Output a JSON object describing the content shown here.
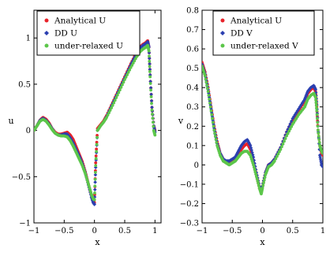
{
  "chart_data": [
    {
      "type": "scatter",
      "xlabel": "x",
      "ylabel": "u",
      "xlim": [
        -1,
        1.1
      ],
      "ylim": [
        -1,
        1.3
      ],
      "xticks": [
        "−1",
        "−0.5",
        "0",
        "0.5",
        "1"
      ],
      "yticks": [
        "−1",
        "−0.5",
        "0",
        "0.5",
        "1"
      ],
      "grid": false,
      "legend_position": "top-left",
      "series": [
        {
          "name": "Analytical U",
          "color": "#e8222a",
          "marker": "dot",
          "points": [
            [
              -1,
              0.0
            ],
            [
              -0.95,
              0.05
            ],
            [
              -0.9,
              0.11
            ],
            [
              -0.85,
              0.14
            ],
            [
              -0.8,
              0.12
            ],
            [
              -0.75,
              0.08
            ],
            [
              -0.7,
              0.02
            ],
            [
              -0.65,
              -0.02
            ],
            [
              -0.6,
              -0.04
            ],
            [
              -0.55,
              -0.04
            ],
            [
              -0.5,
              -0.03
            ],
            [
              -0.45,
              -0.02
            ],
            [
              -0.4,
              -0.05
            ],
            [
              -0.35,
              -0.1
            ],
            [
              -0.3,
              -0.18
            ],
            [
              -0.25,
              -0.26
            ],
            [
              -0.2,
              -0.34
            ],
            [
              -0.15,
              -0.45
            ],
            [
              -0.1,
              -0.58
            ],
            [
              -0.05,
              -0.7
            ],
            [
              -0.02,
              -0.76
            ],
            [
              0.0,
              -0.78
            ],
            [
              0.02,
              -0.35
            ],
            [
              0.05,
              0.02
            ],
            [
              0.1,
              0.06
            ],
            [
              0.15,
              0.1
            ],
            [
              0.2,
              0.16
            ],
            [
              0.3,
              0.3
            ],
            [
              0.4,
              0.44
            ],
            [
              0.5,
              0.58
            ],
            [
              0.6,
              0.72
            ],
            [
              0.7,
              0.85
            ],
            [
              0.75,
              0.9
            ],
            [
              0.8,
              0.93
            ],
            [
              0.85,
              0.95
            ],
            [
              0.88,
              0.97
            ],
            [
              0.9,
              0.9
            ],
            [
              0.92,
              0.6
            ],
            [
              0.95,
              0.25
            ],
            [
              0.98,
              0.05
            ],
            [
              1.0,
              0.0
            ]
          ]
        },
        {
          "name": "DD U",
          "color": "#2b3fb0",
          "marker": "diamond",
          "points": [
            [
              -1,
              0.0
            ],
            [
              -0.95,
              0.05
            ],
            [
              -0.9,
              0.11
            ],
            [
              -0.85,
              0.13
            ],
            [
              -0.8,
              0.11
            ],
            [
              -0.75,
              0.07
            ],
            [
              -0.7,
              0.02
            ],
            [
              -0.65,
              -0.03
            ],
            [
              -0.6,
              -0.05
            ],
            [
              -0.55,
              -0.05
            ],
            [
              -0.5,
              -0.04
            ],
            [
              -0.45,
              -0.04
            ],
            [
              -0.4,
              -0.08
            ],
            [
              -0.35,
              -0.14
            ],
            [
              -0.3,
              -0.21
            ],
            [
              -0.25,
              -0.28
            ],
            [
              -0.2,
              -0.36
            ],
            [
              -0.15,
              -0.46
            ],
            [
              -0.1,
              -0.59
            ],
            [
              -0.05,
              -0.72
            ],
            [
              -0.02,
              -0.78
            ],
            [
              0.0,
              -0.8
            ],
            [
              0.02,
              -0.4
            ],
            [
              0.05,
              0.0
            ],
            [
              0.1,
              0.05
            ],
            [
              0.15,
              0.09
            ],
            [
              0.2,
              0.15
            ],
            [
              0.3,
              0.29
            ],
            [
              0.4,
              0.43
            ],
            [
              0.5,
              0.57
            ],
            [
              0.6,
              0.71
            ],
            [
              0.7,
              0.84
            ],
            [
              0.75,
              0.89
            ],
            [
              0.8,
              0.92
            ],
            [
              0.85,
              0.94
            ],
            [
              0.88,
              0.96
            ],
            [
              0.9,
              0.9
            ],
            [
              0.92,
              0.6
            ],
            [
              0.95,
              0.25
            ],
            [
              0.98,
              0.05
            ],
            [
              1.0,
              -0.02
            ]
          ]
        },
        {
          "name": "under-relaxed U",
          "color": "#5cc64a",
          "marker": "dot",
          "points": [
            [
              -1,
              0.0
            ],
            [
              -0.95,
              0.05
            ],
            [
              -0.9,
              0.1
            ],
            [
              -0.85,
              0.12
            ],
            [
              -0.8,
              0.1
            ],
            [
              -0.75,
              0.06
            ],
            [
              -0.7,
              0.01
            ],
            [
              -0.65,
              -0.03
            ],
            [
              -0.6,
              -0.05
            ],
            [
              -0.55,
              -0.06
            ],
            [
              -0.5,
              -0.06
            ],
            [
              -0.45,
              -0.07
            ],
            [
              -0.4,
              -0.11
            ],
            [
              -0.35,
              -0.17
            ],
            [
              -0.3,
              -0.24
            ],
            [
              -0.25,
              -0.31
            ],
            [
              -0.2,
              -0.38
            ],
            [
              -0.15,
              -0.47
            ],
            [
              -0.1,
              -0.58
            ],
            [
              -0.05,
              -0.69
            ],
            [
              -0.02,
              -0.74
            ],
            [
              0.0,
              -0.75
            ],
            [
              0.02,
              -0.38
            ],
            [
              0.05,
              0.0
            ],
            [
              0.1,
              0.05
            ],
            [
              0.15,
              0.09
            ],
            [
              0.2,
              0.14
            ],
            [
              0.3,
              0.27
            ],
            [
              0.4,
              0.41
            ],
            [
              0.5,
              0.55
            ],
            [
              0.6,
              0.68
            ],
            [
              0.7,
              0.8
            ],
            [
              0.75,
              0.85
            ],
            [
              0.8,
              0.88
            ],
            [
              0.85,
              0.9
            ],
            [
              0.88,
              0.92
            ],
            [
              0.9,
              0.86
            ],
            [
              0.92,
              0.58
            ],
            [
              0.95,
              0.22
            ],
            [
              0.98,
              0.0
            ],
            [
              1.0,
              -0.05
            ]
          ]
        }
      ]
    },
    {
      "type": "scatter",
      "xlabel": "x",
      "ylabel": "v",
      "xlim": [
        -1,
        1.0
      ],
      "ylim": [
        -0.3,
        0.8
      ],
      "xticks": [
        "−1",
        "−0.5",
        "0",
        "0.5",
        "1"
      ],
      "yticks": [
        "−0.3",
        "−0.2",
        "−0.1",
        "0",
        "0.1",
        "0.2",
        "0.3",
        "0.4",
        "0.5",
        "0.6",
        "0.7",
        "0.8"
      ],
      "grid": false,
      "legend_position": "top-right",
      "series": [
        {
          "name": "Analytical U",
          "color": "#e8222a",
          "marker": "dot",
          "points": [
            [
              -1,
              0.53
            ],
            [
              -0.95,
              0.48
            ],
            [
              -0.9,
              0.4
            ],
            [
              -0.85,
              0.3
            ],
            [
              -0.8,
              0.2
            ],
            [
              -0.75,
              0.12
            ],
            [
              -0.7,
              0.06
            ],
            [
              -0.65,
              0.03
            ],
            [
              -0.6,
              0.01
            ],
            [
              -0.55,
              0.01
            ],
            [
              -0.5,
              0.02
            ],
            [
              -0.45,
              0.03
            ],
            [
              -0.4,
              0.05
            ],
            [
              -0.35,
              0.08
            ],
            [
              -0.3,
              0.1
            ],
            [
              -0.25,
              0.11
            ],
            [
              -0.2,
              0.08
            ],
            [
              -0.15,
              0.02
            ],
            [
              -0.1,
              -0.05
            ],
            [
              -0.05,
              -0.12
            ],
            [
              -0.02,
              -0.14
            ],
            [
              0.0,
              -0.11
            ],
            [
              0.05,
              -0.04
            ],
            [
              0.1,
              0.0
            ],
            [
              0.15,
              0.01
            ],
            [
              0.2,
              0.03
            ],
            [
              0.3,
              0.09
            ],
            [
              0.4,
              0.17
            ],
            [
              0.5,
              0.23
            ],
            [
              0.6,
              0.28
            ],
            [
              0.7,
              0.33
            ],
            [
              0.75,
              0.37
            ],
            [
              0.8,
              0.39
            ],
            [
              0.85,
              0.4
            ],
            [
              0.88,
              0.38
            ],
            [
              0.9,
              0.3
            ],
            [
              0.92,
              0.18
            ],
            [
              0.95,
              0.1
            ],
            [
              0.98,
              0.06
            ],
            [
              1.0,
              0.05
            ]
          ]
        },
        {
          "name": "DD V",
          "color": "#2b3fb0",
          "marker": "diamond",
          "points": [
            [
              -1,
              0.52
            ],
            [
              -0.95,
              0.47
            ],
            [
              -0.9,
              0.39
            ],
            [
              -0.85,
              0.29
            ],
            [
              -0.8,
              0.19
            ],
            [
              -0.75,
              0.11
            ],
            [
              -0.7,
              0.06
            ],
            [
              -0.65,
              0.03
            ],
            [
              -0.6,
              0.02
            ],
            [
              -0.55,
              0.02
            ],
            [
              -0.5,
              0.03
            ],
            [
              -0.45,
              0.04
            ],
            [
              -0.4,
              0.07
            ],
            [
              -0.35,
              0.1
            ],
            [
              -0.3,
              0.12
            ],
            [
              -0.25,
              0.13
            ],
            [
              -0.2,
              0.1
            ],
            [
              -0.15,
              0.04
            ],
            [
              -0.1,
              -0.04
            ],
            [
              -0.05,
              -0.11
            ],
            [
              -0.02,
              -0.14
            ],
            [
              0.0,
              -0.11
            ],
            [
              0.05,
              -0.04
            ],
            [
              0.1,
              0.0
            ],
            [
              0.15,
              0.01
            ],
            [
              0.2,
              0.03
            ],
            [
              0.3,
              0.09
            ],
            [
              0.4,
              0.17
            ],
            [
              0.5,
              0.24
            ],
            [
              0.6,
              0.29
            ],
            [
              0.7,
              0.34
            ],
            [
              0.75,
              0.38
            ],
            [
              0.8,
              0.4
            ],
            [
              0.85,
              0.41
            ],
            [
              0.88,
              0.39
            ],
            [
              0.9,
              0.31
            ],
            [
              0.92,
              0.2
            ],
            [
              0.95,
              0.05
            ],
            [
              0.98,
              0.0
            ],
            [
              1.0,
              -0.01
            ]
          ]
        },
        {
          "name": "under-relaxed V",
          "color": "#5cc64a",
          "marker": "dot",
          "points": [
            [
              -1,
              0.51
            ],
            [
              -0.95,
              0.46
            ],
            [
              -0.9,
              0.38
            ],
            [
              -0.85,
              0.28
            ],
            [
              -0.8,
              0.18
            ],
            [
              -0.75,
              0.1
            ],
            [
              -0.7,
              0.05
            ],
            [
              -0.65,
              0.02
            ],
            [
              -0.6,
              0.01
            ],
            [
              -0.55,
              0.0
            ],
            [
              -0.5,
              0.01
            ],
            [
              -0.45,
              0.02
            ],
            [
              -0.4,
              0.04
            ],
            [
              -0.35,
              0.06
            ],
            [
              -0.3,
              0.07
            ],
            [
              -0.25,
              0.07
            ],
            [
              -0.2,
              0.05
            ],
            [
              -0.15,
              0.0
            ],
            [
              -0.1,
              -0.06
            ],
            [
              -0.05,
              -0.12
            ],
            [
              -0.02,
              -0.15
            ],
            [
              0.0,
              -0.12
            ],
            [
              0.05,
              -0.05
            ],
            [
              0.1,
              -0.01
            ],
            [
              0.15,
              0.0
            ],
            [
              0.2,
              0.02
            ],
            [
              0.3,
              0.08
            ],
            [
              0.4,
              0.15
            ],
            [
              0.5,
              0.21
            ],
            [
              0.6,
              0.26
            ],
            [
              0.7,
              0.3
            ],
            [
              0.75,
              0.34
            ],
            [
              0.8,
              0.36
            ],
            [
              0.85,
              0.37
            ],
            [
              0.88,
              0.35
            ],
            [
              0.9,
              0.28
            ],
            [
              0.92,
              0.18
            ],
            [
              0.95,
              0.1
            ],
            [
              0.98,
              0.07
            ],
            [
              1.0,
              0.06
            ]
          ]
        }
      ]
    }
  ]
}
